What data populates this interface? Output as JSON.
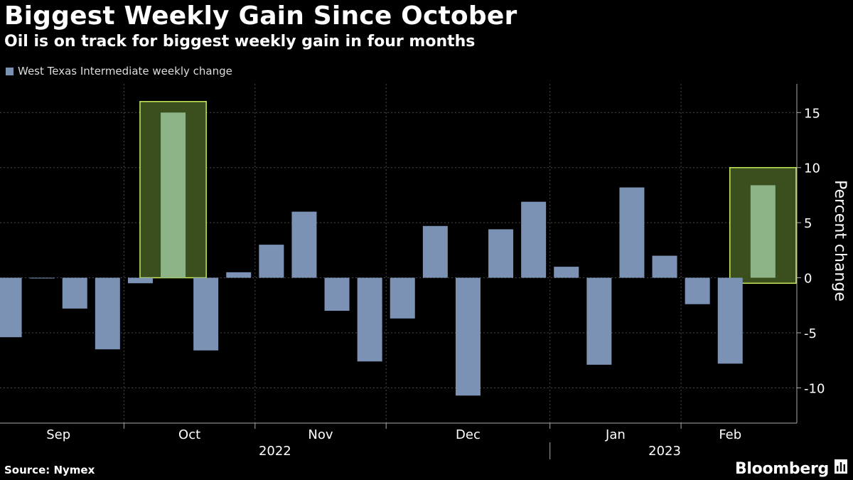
{
  "title": "Biggest Weekly Gain Since October",
  "subtitle": "Oil is on track for biggest weekly gain in four months",
  "source": "Source: Nymex",
  "brand": "Bloomberg",
  "colors": {
    "background": "#000000",
    "bar": "#7b92b5",
    "highlight_fill": "#3b4f1e",
    "highlight_stroke": "#c8ec5a",
    "highlight_bar": "#8cb487",
    "grid": "#4a4a4a",
    "text": "#ffffff"
  },
  "chart_data": {
    "type": "bar",
    "legend": "West Texas Intermediate weekly change",
    "ylabel": "Percent change",
    "ylim": [
      -13.2,
      17.6
    ],
    "yticks": [
      -10,
      -5,
      0,
      5,
      10,
      15
    ],
    "ytick_labels": [
      "-10",
      "-5",
      "0",
      "5",
      "10",
      "15"
    ],
    "values": [
      -5.4,
      0.0,
      -2.8,
      -6.5,
      -0.5,
      15.0,
      -6.6,
      0.5,
      3.0,
      6.0,
      -3.0,
      -7.6,
      -3.7,
      4.7,
      -10.7,
      4.4,
      6.9,
      1.0,
      -7.9,
      8.2,
      2.0,
      -2.4,
      -7.8,
      8.4
    ],
    "highlighted_indices": [
      5,
      23
    ],
    "highlight_ranges": [
      [
        0,
        16
      ],
      [
        -0.5,
        10
      ]
    ],
    "months": [
      {
        "label": "Sep",
        "after_index": 3
      },
      {
        "label": "Oct",
        "after_index": 7
      },
      {
        "label": "Nov",
        "after_index": 11
      },
      {
        "label": "Dec",
        "after_index": 16
      },
      {
        "label": "Jan",
        "after_index": 20
      },
      {
        "label": "Feb",
        "after_index": null
      }
    ],
    "month_starts": [
      -0.5,
      3.5,
      7.5,
      11.5,
      16.5,
      20.5
    ],
    "years": [
      {
        "label": "2022",
        "from": -0.5,
        "to": 16.5
      },
      {
        "label": "2023",
        "from": 16.5,
        "to": 23.5
      }
    ]
  }
}
